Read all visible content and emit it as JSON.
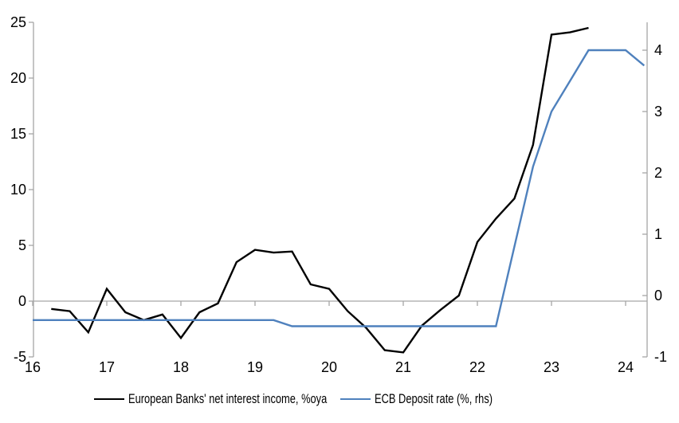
{
  "chart_data": {
    "type": "line",
    "title": "",
    "x_axis": {
      "ticks": [
        16,
        17,
        18,
        19,
        20,
        21,
        22,
        23,
        24
      ],
      "min": 16,
      "max": 24.3,
      "grid": false
    },
    "left_axis": {
      "ticks": [
        25,
        20,
        15,
        10,
        5,
        0,
        -5
      ],
      "min": -5,
      "max": 25,
      "grid": false,
      "zero_line": true
    },
    "right_axis": {
      "ticks": [
        4,
        3,
        2,
        1,
        0,
        -1
      ],
      "min": -1,
      "max": 4.45,
      "grid": false
    },
    "legend_position": "bottom",
    "series": [
      {
        "name": "European Banks' net interest income, %oya",
        "axis": "left",
        "color": "#000000",
        "x": [
          16.25,
          16.5,
          16.75,
          17,
          17.25,
          17.5,
          17.75,
          18,
          18.25,
          18.5,
          18.75,
          19,
          19.25,
          19.5,
          19.75,
          20,
          20.25,
          20.5,
          20.75,
          21,
          21.25,
          21.5,
          21.75,
          22,
          22.25,
          22.5,
          22.75,
          23,
          23.25,
          23.5
        ],
        "y": [
          -0.7,
          -0.9,
          -2.8,
          1.1,
          -1.0,
          -1.7,
          -1.2,
          -3.3,
          -1.0,
          -0.2,
          3.5,
          4.6,
          4.35,
          4.45,
          1.5,
          1.1,
          -0.9,
          -2.4,
          -4.4,
          -4.6,
          -2.2,
          -0.8,
          0.5,
          5.3,
          7.4,
          9.2,
          14.0,
          23.9,
          24.1,
          24.5
        ]
      },
      {
        "name": "ECB Deposit rate (%, rhs)",
        "axis": "right",
        "color": "#4f81bd",
        "x": [
          16,
          16.25,
          16.5,
          16.75,
          17,
          17.25,
          17.5,
          17.75,
          18,
          18.25,
          18.5,
          18.75,
          19,
          19.25,
          19.5,
          19.75,
          20,
          20.25,
          20.5,
          20.75,
          21,
          21.25,
          21.5,
          21.75,
          22,
          22.25,
          22.5,
          22.75,
          23,
          23.25,
          23.5,
          23.75,
          24,
          24.25
        ],
        "y": [
          -0.4,
          -0.4,
          -0.4,
          -0.4,
          -0.4,
          -0.4,
          -0.4,
          -0.4,
          -0.4,
          -0.4,
          -0.4,
          -0.4,
          -0.4,
          -0.4,
          -0.5,
          -0.5,
          -0.5,
          -0.5,
          -0.5,
          -0.5,
          -0.5,
          -0.5,
          -0.5,
          -0.5,
          -0.5,
          -0.5,
          0.8,
          2.1,
          3.0,
          3.5,
          4.0,
          4.0,
          4.0,
          3.75
        ]
      }
    ]
  },
  "colors": {
    "axis": "#a6a6a6",
    "text": "#000000",
    "background": "#ffffff",
    "series1": "#000000",
    "series2": "#4f81bd"
  }
}
